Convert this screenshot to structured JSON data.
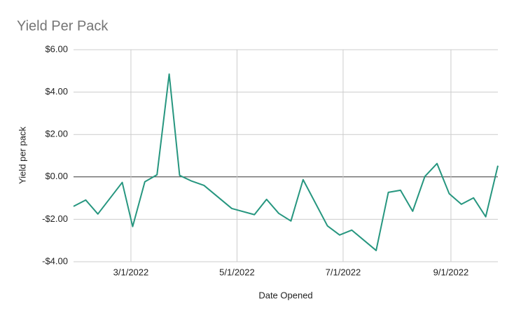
{
  "chart_data": {
    "type": "line",
    "title": "Yield Per Pack",
    "x_label": "Date Opened",
    "y_label": "Yield per pack",
    "x": [
      "1/27/2022",
      "2/3/2022",
      "2/10/2022",
      "2/24/2022",
      "3/2/2022",
      "3/9/2022",
      "3/16/2022",
      "3/23/2022",
      "3/29/2022",
      "4/5/2022",
      "4/12/2022",
      "4/28/2022",
      "5/11/2022",
      "5/18/2022",
      "5/25/2022",
      "6/1/2022",
      "6/8/2022",
      "6/22/2022",
      "6/29/2022",
      "7/6/2022",
      "7/20/2022",
      "7/27/2022",
      "8/3/2022",
      "8/10/2022",
      "8/17/2022",
      "8/24/2022",
      "8/31/2022",
      "9/7/2022",
      "9/14/2022",
      "9/21/2022",
      "9/28/2022"
    ],
    "series": [
      {
        "name": "Yield per pack",
        "color": "#26967f",
        "values": [
          -1.39,
          -1.09,
          -1.75,
          -0.26,
          -2.34,
          -0.23,
          0.1,
          4.85,
          0.07,
          -0.2,
          -0.4,
          -1.49,
          -1.78,
          -1.06,
          -1.72,
          -2.08,
          -0.13,
          -2.31,
          -2.74,
          -2.51,
          -3.47,
          -0.73,
          -0.63,
          -1.62,
          0.02,
          0.63,
          -0.79,
          -1.29,
          -0.99,
          -1.88,
          0.53
        ]
      }
    ],
    "xlim": [
      "1/27/2022",
      "9/28/2022"
    ],
    "xticks": [
      "3/1/2022",
      "5/1/2022",
      "7/1/2022",
      "9/1/2022"
    ],
    "ylim": [
      -4,
      6
    ],
    "yticks": [
      {
        "value": -4,
        "label": "-$4.00"
      },
      {
        "value": -2,
        "label": "-$2.00"
      },
      {
        "value": 0,
        "label": "$0.00"
      },
      {
        "value": 2,
        "label": "$2.00"
      },
      {
        "value": 4,
        "label": "$4.00"
      },
      {
        "value": 6,
        "label": "$6.00"
      }
    ],
    "grid": true
  }
}
